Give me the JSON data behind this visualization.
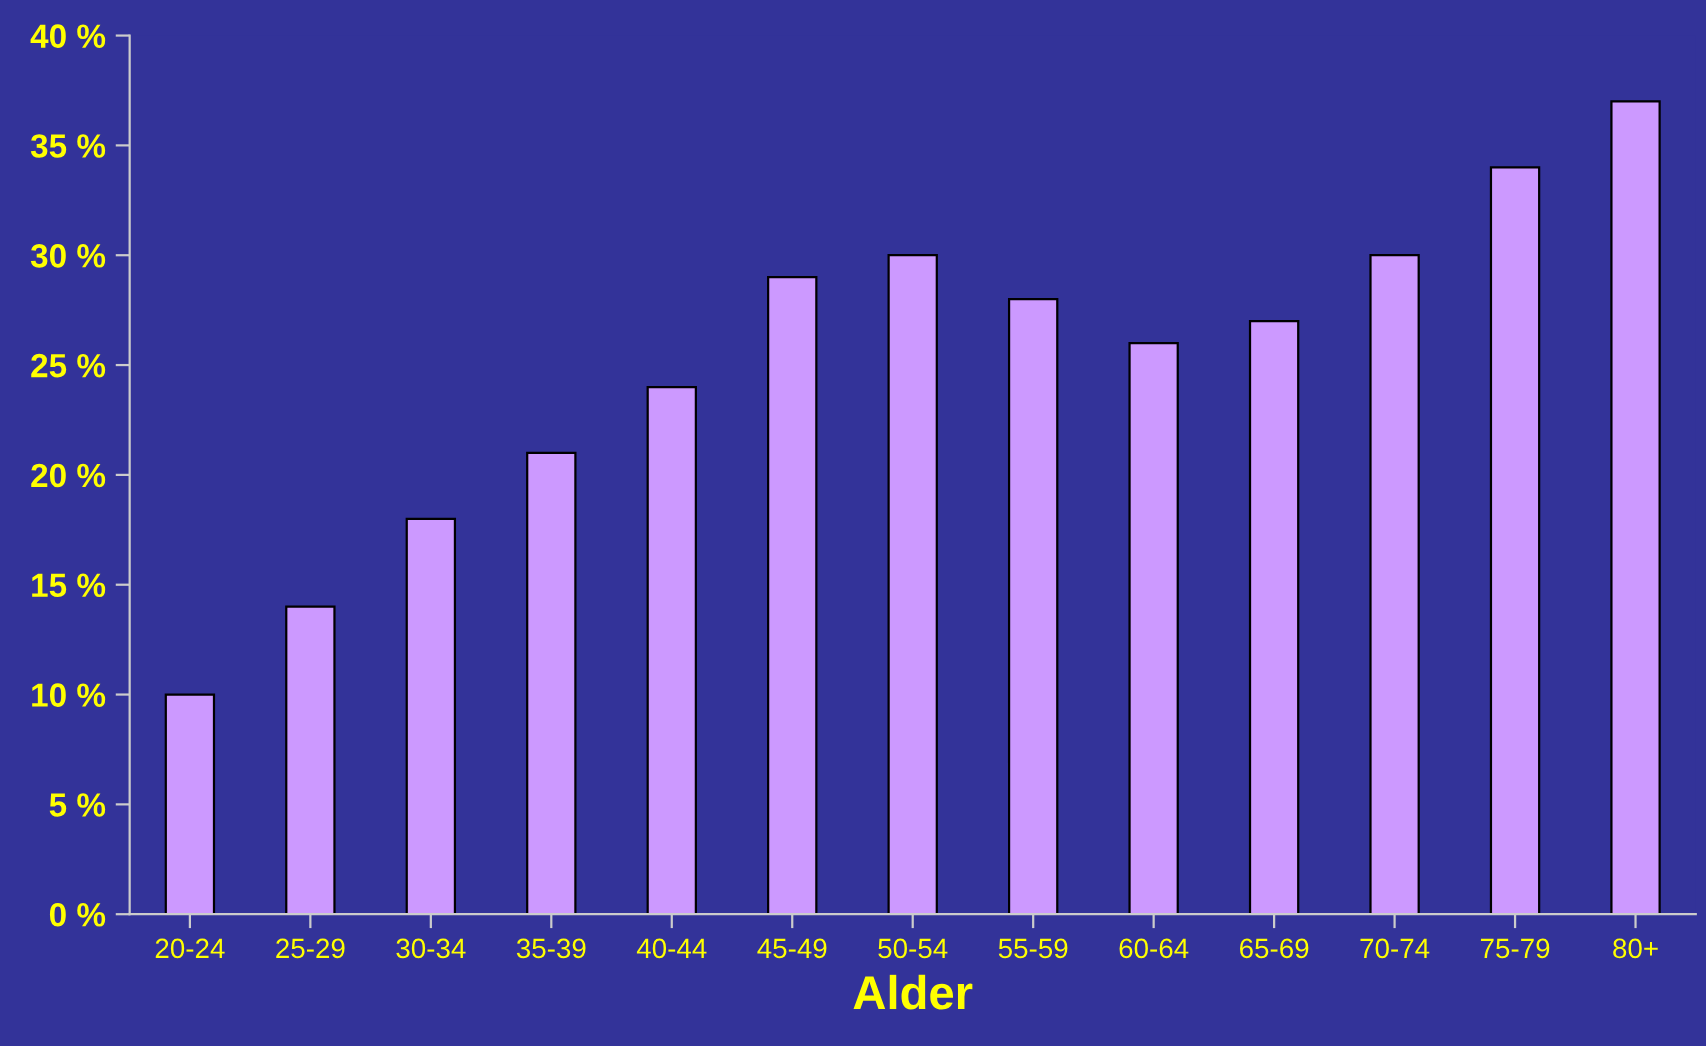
{
  "chart_data": {
    "type": "bar",
    "xlabel": "Alder",
    "categories": [
      "20-24",
      "25-29",
      "30-34",
      "35-39",
      "40-44",
      "45-49",
      "50-54",
      "55-59",
      "60-64",
      "65-69",
      "70-74",
      "75-79",
      "80+"
    ],
    "values": [
      10,
      14,
      18,
      21,
      24,
      29,
      30,
      28,
      26,
      27,
      30,
      34,
      37
    ],
    "color": "#cc99ff",
    "ylim": [
      0,
      40
    ],
    "yticks": [
      {
        "value": 0,
        "label": "0 %"
      },
      {
        "value": 5,
        "label": "5 %"
      },
      {
        "value": 10,
        "label": "10 %"
      },
      {
        "value": 15,
        "label": "15 %"
      },
      {
        "value": 20,
        "label": "20 %"
      },
      {
        "value": 25,
        "label": "25 %"
      },
      {
        "value": 30,
        "label": "30 %"
      },
      {
        "value": 35,
        "label": "35 %"
      },
      {
        "value": 40,
        "label": "40 %"
      }
    ],
    "grid": false,
    "legend": false
  }
}
